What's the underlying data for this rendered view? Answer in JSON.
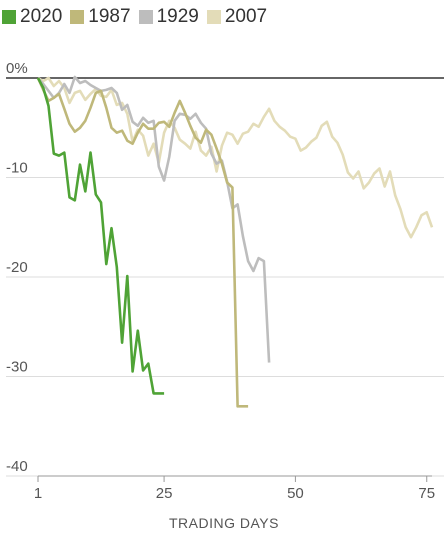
{
  "chart_data": {
    "type": "line",
    "xlabel": "TRADING DAYS",
    "ylabel": "",
    "xlim": [
      1,
      76
    ],
    "ylim": [
      -40,
      0
    ],
    "x_ticks": [
      "1",
      "25",
      "50",
      "75"
    ],
    "y_ticks": [
      "0%",
      "-10",
      "-20",
      "-30",
      "-40"
    ],
    "legend_position": "top-left",
    "series": [
      {
        "name": "2007",
        "color": "#e3dcb8",
        "x": [
          1,
          2,
          3,
          4,
          5,
          6,
          7,
          8,
          9,
          10,
          11,
          12,
          13,
          14,
          15,
          16,
          17,
          18,
          19,
          20,
          21,
          22,
          23,
          24,
          25,
          26,
          27,
          28,
          29,
          30,
          31,
          32,
          33,
          34,
          35,
          36,
          37,
          38,
          39,
          40,
          41,
          42,
          43,
          44,
          45,
          46,
          47,
          48,
          49,
          50,
          51,
          52,
          53,
          54,
          55,
          56,
          57,
          58,
          59,
          60,
          61,
          62,
          63,
          64,
          65,
          66,
          67,
          68,
          69,
          70,
          71,
          72,
          73,
          74,
          75,
          76
        ],
        "values": [
          0,
          -0.3,
          0,
          -0.8,
          -0.3,
          -1.0,
          -2.5,
          -1.5,
          -1.3,
          -2.2,
          -1.6,
          -1.1,
          -1.8,
          -1.9,
          -1.2,
          -2.7,
          -2.5,
          -3.6,
          -6.4,
          -5.2,
          -5.8,
          -7.8,
          -6.6,
          -8.5,
          -5.5,
          -4.3,
          -5.0,
          -6.2,
          -6.6,
          -7.1,
          -5.4,
          -7.3,
          -7.8,
          -6.9,
          -9.4,
          -6.8,
          -5.5,
          -5.7,
          -6.6,
          -5.6,
          -5.4,
          -4.6,
          -4.9,
          -3.9,
          -3.1,
          -4.3,
          -4.9,
          -5.3,
          -5.9,
          -6.1,
          -7.3,
          -7.0,
          -6.4,
          -6.0,
          -4.8,
          -4.4,
          -5.9,
          -6.5,
          -7.7,
          -9.5,
          -10.1,
          -9.4,
          -11.1,
          -10.5,
          -9.6,
          -9.1,
          -10.9,
          -9.4,
          -11.8,
          -13.2,
          -15.0,
          -16.0,
          -15.0,
          -13.8,
          -13.5,
          -15.0
        ]
      },
      {
        "name": "1929",
        "color": "#bdbdbd",
        "x": [
          1,
          2,
          3,
          4,
          5,
          6,
          7,
          8,
          9,
          10,
          11,
          12,
          13,
          14,
          15,
          16,
          17,
          18,
          19,
          20,
          21,
          22,
          23,
          24,
          25,
          26,
          27,
          28,
          29,
          30,
          31,
          32,
          33,
          34,
          35,
          36,
          37,
          38,
          39,
          40,
          41,
          42,
          43,
          44,
          45
        ],
        "values": [
          0,
          -0.6,
          -1.3,
          -2.0,
          -1.5,
          -0.6,
          -1.5,
          0.1,
          -0.5,
          -0.3,
          -0.7,
          -1.0,
          -1.3,
          -1.2,
          -1.0,
          -1.5,
          -3.2,
          -2.7,
          -4.4,
          -4.8,
          -4.0,
          -4.5,
          -4.3,
          -8.9,
          -10.3,
          -7.9,
          -4.3,
          -3.6,
          -3.7,
          -4.1,
          -3.6,
          -4.5,
          -5.1,
          -7.6,
          -8.6,
          -8.3,
          -10.4,
          -13.1,
          -12.7,
          -15.9,
          -18.4,
          -19.4,
          -18.1,
          -18.4,
          -28.6
        ]
      },
      {
        "name": "1987",
        "color": "#bfb87a",
        "x": [
          1,
          2,
          3,
          4,
          5,
          6,
          7,
          8,
          9,
          10,
          11,
          12,
          13,
          14,
          15,
          16,
          17,
          18,
          19,
          20,
          21,
          22,
          23,
          24,
          25,
          26,
          27,
          28,
          29,
          30,
          31,
          32,
          33,
          34,
          35,
          36,
          37,
          38,
          39,
          40,
          41
        ],
        "values": [
          0,
          -1.2,
          -2.3,
          -2.0,
          -1.6,
          -3.1,
          -4.6,
          -5.4,
          -5.0,
          -4.3,
          -3.0,
          -1.5,
          -1.3,
          -3.0,
          -5.0,
          -5.5,
          -5.3,
          -6.3,
          -6.6,
          -5.5,
          -4.6,
          -5.1,
          -5.1,
          -4.5,
          -4.4,
          -4.9,
          -3.5,
          -2.3,
          -3.5,
          -4.8,
          -6.0,
          -6.5,
          -5.2,
          -5.7,
          -7.1,
          -8.6,
          -10.5,
          -11.0,
          -33.0,
          -33.0,
          -33.0
        ]
      },
      {
        "name": "2020",
        "color": "#4fa336",
        "x": [
          1,
          2,
          3,
          4,
          5,
          6,
          7,
          8,
          9,
          10,
          11,
          12,
          13,
          14,
          15,
          16,
          17,
          18,
          19,
          20,
          21,
          22,
          23,
          24,
          25
        ],
        "values": [
          0,
          -1.0,
          -2.8,
          -7.6,
          -7.8,
          -7.5,
          -12.0,
          -12.3,
          -8.7,
          -11.4,
          -7.5,
          -11.7,
          -12.5,
          -18.7,
          -15.1,
          -19.0,
          -26.6,
          -19.9,
          -29.5,
          -25.4,
          -29.4,
          -28.7,
          -31.7,
          -31.7,
          -31.7
        ]
      }
    ]
  }
}
